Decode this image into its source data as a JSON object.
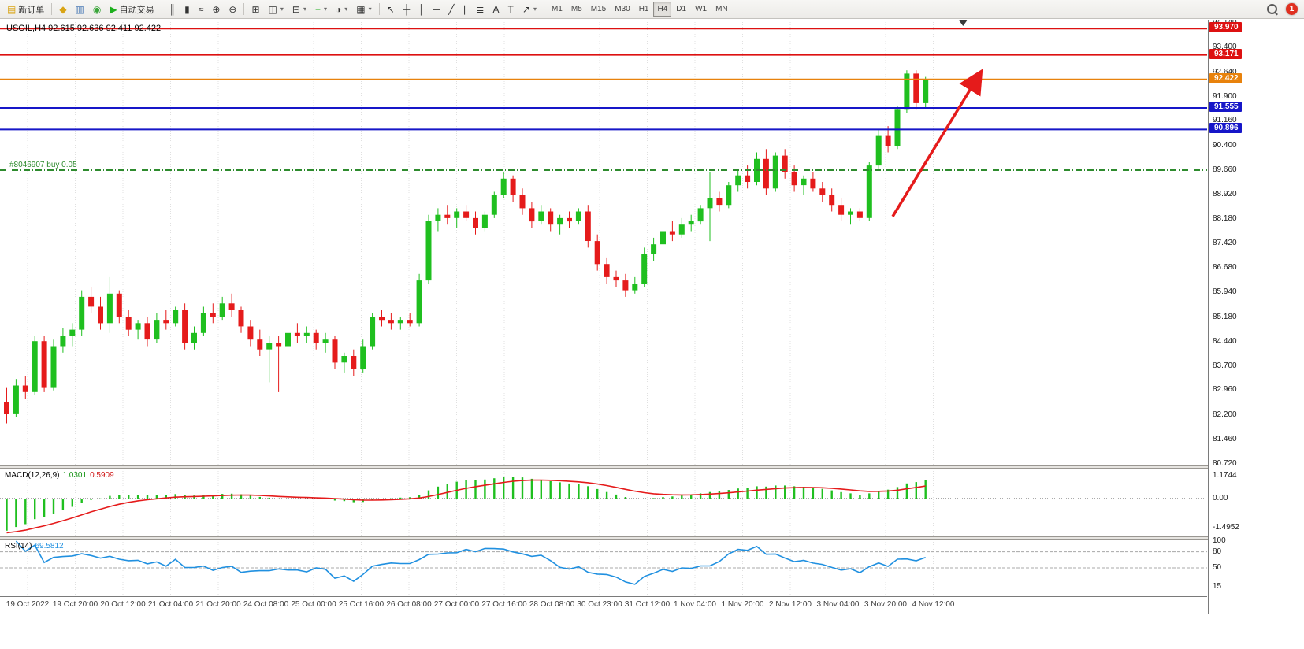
{
  "toolbar": {
    "caret_glyph": "▾",
    "new_order": {
      "label": "新订单",
      "icon": "▤",
      "icon_color": "#d9a414"
    },
    "quick_icons": [
      {
        "name": "profiles-icon",
        "glyph": "◆",
        "color": "#d9a414"
      },
      {
        "name": "market-watch-icon",
        "glyph": "▥",
        "color": "#4a7ab5"
      },
      {
        "name": "strategy-tester-icon",
        "glyph": "◉",
        "color": "#3aa53a"
      }
    ],
    "autotrading": {
      "label": "自动交易",
      "icon": "▶",
      "icon_color": "#1daf1d"
    },
    "chart_types": [
      {
        "name": "bar-chart-button",
        "glyph": "║"
      },
      {
        "name": "candlestick-chart-button",
        "glyph": "▮"
      },
      {
        "name": "line-chart-button",
        "glyph": "≈"
      }
    ],
    "zoom_buttons": [
      {
        "name": "zoom-in-button",
        "glyph": "⊕"
      },
      {
        "name": "zoom-out-button",
        "glyph": "⊖"
      }
    ],
    "window_tools": [
      {
        "name": "tile-windows-button",
        "glyph": "⊞"
      },
      {
        "name": "cascade-windows-button",
        "glyph": "◫",
        "caret": true
      },
      {
        "name": "arrange-windows-button",
        "glyph": "⊟",
        "caret": true
      },
      {
        "name": "add-indicator-button",
        "glyph": "+",
        "color": "#1daf1d",
        "caret": true
      },
      {
        "name": "periods-button",
        "glyph": "◑",
        "caret": true
      },
      {
        "name": "templates-button",
        "glyph": "▦",
        "caret": true
      }
    ],
    "draw_tools": [
      {
        "name": "cursor-button",
        "glyph": "↖"
      },
      {
        "name": "crosshair-button",
        "glyph": "┼"
      },
      {
        "name": "vertical-line-button",
        "glyph": "│"
      },
      {
        "name": "horizontal-line-button",
        "glyph": "─"
      },
      {
        "name": "trendline-button",
        "glyph": "╱"
      },
      {
        "name": "channel-button",
        "glyph": "∥"
      },
      {
        "name": "fibonacci-button",
        "glyph": "≣"
      },
      {
        "name": "text-button",
        "glyph": "A"
      },
      {
        "name": "label-button",
        "glyph": "T"
      },
      {
        "name": "arrows-button",
        "glyph": "↗",
        "caret": true
      }
    ],
    "timeframes": [
      "M1",
      "M5",
      "M15",
      "M30",
      "H1",
      "H4",
      "D1",
      "W1",
      "MN"
    ],
    "active_timeframe": "H4",
    "notification_count": "1"
  },
  "chart": {
    "title": "USOIL,H4 92.615 92.636 92.411 92.422",
    "symbol": "USOIL",
    "period": "H4",
    "ohlc": {
      "open": "92.615",
      "high": "92.636",
      "low": "92.411",
      "close": "92.422"
    },
    "up_color": "#1fbf1f",
    "down_color": "#e51b1b",
    "grid_color": "#e0e0e0",
    "price_axis_ticks": [
      94.14,
      93.4,
      92.64,
      91.9,
      91.16,
      90.4,
      89.66,
      88.92,
      88.18,
      87.42,
      86.68,
      85.94,
      85.18,
      84.44,
      83.7,
      82.96,
      82.2,
      81.46,
      80.72
    ],
    "lines": [
      {
        "name": "resistance-line-1",
        "value": 93.97,
        "color": "#dd1111",
        "style": "solid",
        "badge": true
      },
      {
        "name": "resistance-line-2",
        "value": 93.171,
        "color": "#dd1111",
        "style": "solid",
        "badge": true
      },
      {
        "name": "current-price-line",
        "value": 92.422,
        "color": "#e8820c",
        "style": "solid",
        "badge": true
      },
      {
        "name": "support-line-1",
        "value": 91.555,
        "color": "#1616c8",
        "style": "solid",
        "badge": true
      },
      {
        "name": "support-line-2",
        "value": 90.896,
        "color": "#1616c8",
        "style": "solid",
        "badge": true
      },
      {
        "name": "buy-position-line",
        "value": 89.66,
        "color": "#2e8b2e",
        "style": "dashdot",
        "badge": false,
        "label": "#8046907 buy 0.05"
      }
    ],
    "trade_label": "#8046907 buy 0.05",
    "time_labels": [
      "19 Oct 2022",
      "19 Oct 20:00",
      "20 Oct 12:00",
      "21 Oct 04:00",
      "21 Oct 20:00",
      "24 Oct 08:00",
      "25 Oct 00:00",
      "25 Oct 16:00",
      "26 Oct 08:00",
      "27 Oct 00:00",
      "27 Oct 16:00",
      "28 Oct 08:00",
      "30 Oct 23:00",
      "31 Oct 12:00",
      "1 Nov 04:00",
      "1 Nov 20:00",
      "2 Nov 12:00",
      "3 Nov 04:00",
      "3 Nov 20:00",
      "4 Nov 12:00"
    ],
    "shift_marker_bar": 102,
    "arrow": {
      "from_bar": 94.5,
      "from_price": 88.25,
      "to_bar": 103.8,
      "to_price": 92.6,
      "color": "#e51b1b"
    },
    "candles": [
      [
        82.6,
        83.05,
        81.95,
        82.25
      ],
      [
        82.25,
        83.3,
        82.15,
        83.1
      ],
      [
        83.1,
        83.4,
        82.7,
        82.9
      ],
      [
        82.9,
        84.6,
        82.8,
        84.45
      ],
      [
        84.45,
        84.6,
        82.9,
        83.05
      ],
      [
        83.05,
        84.5,
        82.95,
        84.3
      ],
      [
        84.3,
        84.85,
        84.1,
        84.6
      ],
      [
        84.6,
        85.0,
        84.3,
        84.8
      ],
      [
        84.8,
        86.0,
        84.6,
        85.8
      ],
      [
        85.8,
        86.1,
        85.3,
        85.5
      ],
      [
        85.5,
        85.8,
        84.8,
        85.0
      ],
      [
        85.0,
        86.4,
        84.7,
        85.9
      ],
      [
        85.9,
        86.0,
        85.0,
        85.2
      ],
      [
        85.2,
        85.4,
        84.6,
        84.8
      ],
      [
        84.8,
        85.1,
        84.5,
        85.0
      ],
      [
        85.0,
        85.2,
        84.3,
        84.5
      ],
      [
        84.5,
        85.3,
        84.4,
        85.1
      ],
      [
        85.1,
        85.4,
        84.8,
        85.0
      ],
      [
        85.0,
        85.5,
        84.9,
        85.4
      ],
      [
        85.4,
        85.6,
        84.2,
        84.4
      ],
      [
        84.4,
        84.9,
        84.2,
        84.7
      ],
      [
        84.7,
        85.5,
        84.6,
        85.3
      ],
      [
        85.3,
        85.6,
        85.0,
        85.2
      ],
      [
        85.2,
        85.8,
        85.1,
        85.6
      ],
      [
        85.6,
        85.9,
        85.2,
        85.4
      ],
      [
        85.4,
        85.5,
        84.7,
        84.9
      ],
      [
        84.9,
        85.1,
        84.3,
        84.5
      ],
      [
        84.5,
        84.8,
        84.0,
        84.2
      ],
      [
        84.2,
        84.6,
        83.2,
        84.4
      ],
      [
        84.4,
        84.6,
        82.9,
        84.3
      ],
      [
        84.3,
        84.9,
        84.2,
        84.7
      ],
      [
        84.7,
        85.0,
        84.4,
        84.6
      ],
      [
        84.6,
        84.9,
        84.4,
        84.7
      ],
      [
        84.7,
        84.8,
        84.2,
        84.4
      ],
      [
        84.4,
        84.7,
        84.1,
        84.5
      ],
      [
        84.5,
        84.6,
        83.6,
        83.8
      ],
      [
        83.8,
        84.1,
        83.5,
        84.0
      ],
      [
        84.0,
        84.2,
        83.4,
        83.6
      ],
      [
        83.6,
        84.5,
        83.5,
        84.3
      ],
      [
        84.3,
        85.3,
        84.2,
        85.2
      ],
      [
        85.2,
        85.4,
        84.9,
        85.1
      ],
      [
        85.1,
        85.3,
        84.8,
        85.0
      ],
      [
        85.0,
        85.2,
        84.8,
        85.1
      ],
      [
        85.1,
        85.3,
        84.9,
        85.0
      ],
      [
        85.0,
        86.5,
        84.9,
        86.3
      ],
      [
        86.3,
        88.3,
        86.2,
        88.1
      ],
      [
        88.1,
        88.5,
        87.8,
        88.3
      ],
      [
        88.3,
        88.6,
        88.0,
        88.2
      ],
      [
        88.2,
        88.5,
        87.9,
        88.4
      ],
      [
        88.4,
        88.6,
        88.1,
        88.2
      ],
      [
        88.2,
        88.4,
        87.7,
        87.9
      ],
      [
        87.9,
        88.4,
        87.8,
        88.3
      ],
      [
        88.3,
        89.0,
        88.2,
        88.9
      ],
      [
        88.9,
        89.6,
        88.8,
        89.4
      ],
      [
        89.4,
        89.5,
        88.7,
        88.9
      ],
      [
        88.9,
        89.1,
        88.3,
        88.5
      ],
      [
        88.5,
        88.7,
        87.9,
        88.1
      ],
      [
        88.1,
        88.6,
        88.0,
        88.4
      ],
      [
        88.4,
        88.5,
        87.8,
        88.0
      ],
      [
        88.0,
        88.3,
        87.7,
        88.2
      ],
      [
        88.2,
        88.4,
        87.9,
        88.1
      ],
      [
        88.1,
        88.5,
        88.0,
        88.4
      ],
      [
        88.4,
        88.6,
        87.3,
        87.5
      ],
      [
        87.5,
        87.7,
        86.6,
        86.8
      ],
      [
        86.8,
        87.0,
        86.2,
        86.4
      ],
      [
        86.4,
        86.6,
        86.1,
        86.3
      ],
      [
        86.3,
        86.5,
        85.8,
        86.0
      ],
      [
        86.0,
        86.4,
        85.9,
        86.2
      ],
      [
        86.2,
        87.3,
        86.1,
        87.1
      ],
      [
        87.1,
        87.6,
        86.9,
        87.4
      ],
      [
        87.4,
        88.0,
        87.3,
        87.8
      ],
      [
        87.8,
        88.1,
        87.5,
        87.7
      ],
      [
        87.7,
        88.2,
        87.6,
        88.0
      ],
      [
        88.0,
        88.3,
        87.8,
        88.1
      ],
      [
        88.1,
        88.6,
        88.0,
        88.5
      ],
      [
        88.5,
        89.6,
        87.5,
        88.8
      ],
      [
        88.8,
        89.0,
        88.4,
        88.6
      ],
      [
        88.6,
        89.3,
        88.5,
        89.2
      ],
      [
        89.2,
        89.7,
        89.0,
        89.5
      ],
      [
        89.5,
        89.8,
        89.1,
        89.3
      ],
      [
        89.3,
        90.2,
        89.2,
        90.0
      ],
      [
        90.0,
        90.3,
        88.9,
        89.1
      ],
      [
        89.1,
        90.2,
        89.0,
        90.1
      ],
      [
        90.1,
        90.3,
        89.4,
        89.6
      ],
      [
        89.6,
        89.8,
        89.0,
        89.2
      ],
      [
        89.2,
        89.5,
        88.9,
        89.4
      ],
      [
        89.4,
        89.6,
        89.0,
        89.1
      ],
      [
        89.1,
        89.3,
        88.7,
        88.9
      ],
      [
        88.9,
        89.1,
        88.4,
        88.6
      ],
      [
        88.6,
        88.8,
        88.1,
        88.3
      ],
      [
        88.3,
        88.5,
        88.0,
        88.4
      ],
      [
        88.4,
        88.5,
        88.1,
        88.2
      ],
      [
        88.2,
        89.9,
        88.1,
        89.8
      ],
      [
        89.8,
        90.9,
        89.7,
        90.7
      ],
      [
        90.7,
        91.0,
        90.2,
        90.4
      ],
      [
        90.4,
        91.6,
        90.3,
        91.5
      ],
      [
        91.5,
        92.7,
        91.4,
        92.6
      ],
      [
        92.6,
        92.7,
        91.5,
        91.7
      ],
      [
        91.7,
        92.5,
        91.55,
        92.42
      ]
    ]
  },
  "macd": {
    "label": "MACD(12,26,9)",
    "value_main": "1.0301",
    "value_signal": "0.5909",
    "main_color": "#1fbf1f",
    "signal_color": "#e51b1b",
    "axis": [
      "1.1744",
      "0.00",
      "-1.4952"
    ]
  },
  "rsi": {
    "label": "RSI(14)",
    "value": "69.5812",
    "line_color": "#2090e0",
    "axis": [
      "100",
      "80",
      "50",
      "15"
    ],
    "levels": [
      80,
      50
    ]
  }
}
